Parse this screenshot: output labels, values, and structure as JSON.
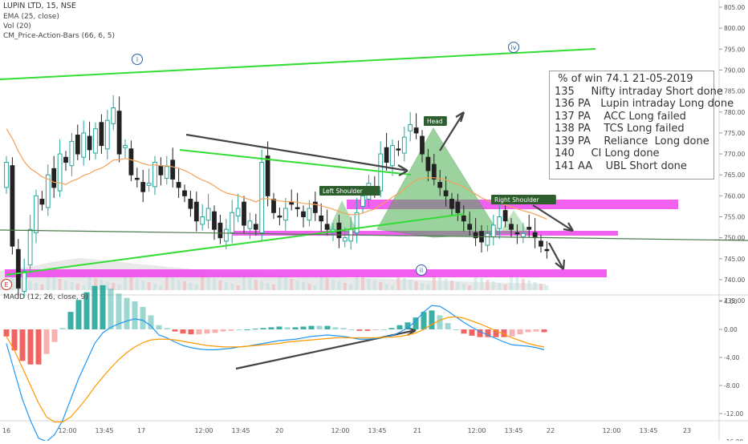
{
  "legend": {
    "title": "LUPIN LTD, 15, NSE",
    "ema": "EMA (25, close)",
    "vol": "Vol (20)",
    "pab": "CM_Price-Action-Bars (66, 6, 5)",
    "macd": "MACD (12, 26, close, 9)"
  },
  "notes": [
    " % of win 74.1 21-05-2019",
    "135     Nifty intraday Short done",
    "136 PA   Lupin intraday Long done",
    "137 PA    ACC Long failed",
    "138 PA    TCS Long failed",
    "139 PA    Reliance  Long done",
    "140     CI Long done",
    "141 AA    UBL Short done"
  ],
  "pattern_labels": {
    "left_shoulder": "Left Shoulder",
    "head": "Head",
    "right_shoulder": "Right Shoulder"
  },
  "wave_labels": [
    "i",
    "ii",
    "iv",
    "E"
  ],
  "colors": {
    "up_candle": "#26a69a",
    "down_candle": "#222222",
    "ema": "#f4a259",
    "trendline": "#33dd33",
    "zone": "#ee44ee",
    "pattern_fill": "#4caf50",
    "macd_line": "#2196f3",
    "signal_line": "#ff9800",
    "hist_pos": "#26a69a",
    "hist_neg": "#ef5350"
  },
  "chart_data": [
    {
      "type": "candlestick",
      "title": "LUPIN LTD, 15, NSE",
      "y_ticks": [
        "805.00",
        "800.00",
        "795.00",
        "790.00",
        "785.00",
        "780.00",
        "775.00",
        "770.00",
        "765.00",
        "760.00",
        "755.00",
        "750.00",
        "745.00",
        "740.00",
        "735.00"
      ],
      "ylim": [
        732,
        806
      ],
      "x_ticks": [
        "16",
        "12:00",
        "13:45",
        "17",
        "12:00",
        "13:45",
        "20",
        "12:00",
        "13:45",
        "21",
        "12:00",
        "13:45",
        "22",
        "12:00",
        "13:45",
        "23"
      ],
      "close": [
        768,
        748,
        738,
        742,
        752,
        760,
        758,
        765,
        762,
        770,
        768,
        773,
        770,
        775,
        771,
        776,
        772,
        778,
        781,
        770,
        772,
        765,
        764,
        761,
        763,
        768,
        765,
        767,
        764,
        762,
        760,
        757,
        754,
        755,
        757,
        752,
        750,
        752,
        756,
        757,
        753,
        754,
        752,
        768,
        760,
        756,
        755,
        757,
        758,
        757,
        755,
        757,
        756,
        754,
        752,
        752,
        750,
        750,
        752,
        756,
        760,
        763,
        762,
        770,
        768,
        772,
        771,
        774,
        777,
        775,
        770,
        766,
        764,
        762,
        760,
        757,
        756,
        754,
        752,
        750,
        749,
        751,
        753,
        755,
        754,
        752,
        751,
        751,
        752,
        750,
        748,
        747
      ]
    },
    {
      "type": "line",
      "title": "MACD (12, 26, close, 9)",
      "y_ticks": [
        "4.00",
        "0.00",
        "-4.00",
        "-8.00",
        "-12.00",
        "-16.00"
      ],
      "ylim": [
        -17,
        4.5
      ],
      "series": [
        {
          "values": [
            -2,
            -6,
            -10,
            -13,
            -15.5,
            -16,
            -15,
            -13,
            -10,
            -7,
            -4.5,
            -2,
            -0.5,
            0.3,
            0.8,
            1.2,
            1.5,
            1.3,
            0.5,
            -0.8,
            -1.2,
            -1.8,
            -2.3,
            -2.6,
            -2.8,
            -2.9,
            -2.9,
            -2.8,
            -2.7,
            -2.5,
            -2.4,
            -2.2,
            -2,
            -1.8,
            -1.6,
            -1.5,
            -1.4,
            -1.2,
            -1,
            -0.9,
            -0.8,
            -0.9,
            -1,
            -1.2,
            -1.4,
            -1.4,
            -1.3,
            -1.1,
            -0.9,
            -0.4,
            0.2,
            1.2,
            2.5,
            3.4,
            3.3,
            2.6,
            1.8,
            1,
            0.3,
            -0.3,
            -0.8,
            -1.3,
            -1.8,
            -2.2,
            -2.3,
            -2.4,
            -2.6,
            -2.9
          ]
        },
        {
          "values": [
            -1,
            -3,
            -5.5,
            -8,
            -10.5,
            -12.5,
            -13.2,
            -13.2,
            -12.5,
            -11.2,
            -9.8,
            -8.2,
            -6.8,
            -5.5,
            -4.3,
            -3.3,
            -2.5,
            -1.9,
            -1.5,
            -1.4,
            -1.4,
            -1.5,
            -1.7,
            -1.9,
            -2.1,
            -2.3,
            -2.4,
            -2.5,
            -2.5,
            -2.5,
            -2.4,
            -2.3,
            -2.2,
            -2.1,
            -2,
            -1.8,
            -1.7,
            -1.6,
            -1.5,
            -1.4,
            -1.3,
            -1.2,
            -1.2,
            -1.2,
            -1.2,
            -1.2,
            -1.2,
            -1.1,
            -1.1,
            -1,
            -0.8,
            -0.5,
            0,
            0.7,
            1.3,
            1.7,
            1.8,
            1.6,
            1.2,
            0.8,
            0.3,
            -0.2,
            -0.7,
            -1.2,
            -1.6,
            -2,
            -2.3,
            -2.5
          ]
        }
      ]
    }
  ]
}
